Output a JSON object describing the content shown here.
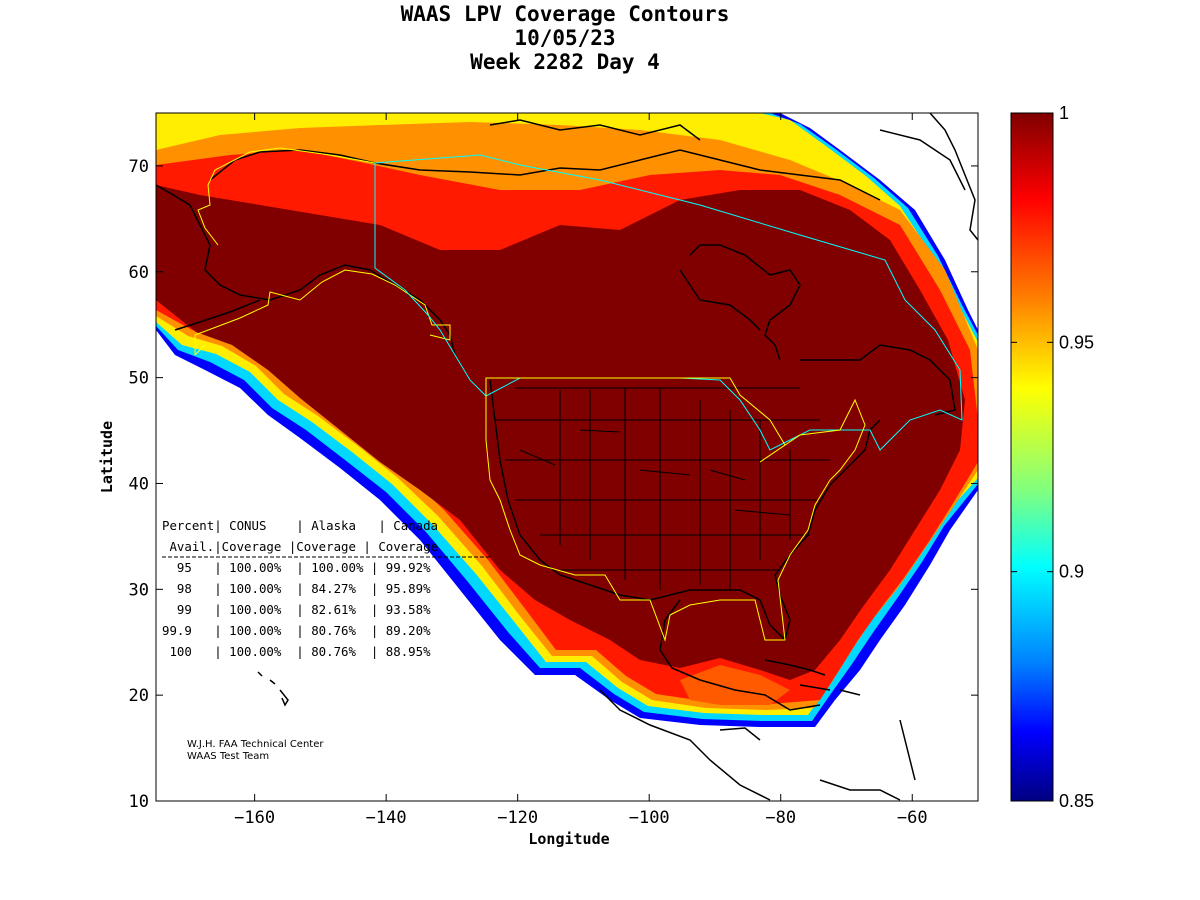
{
  "title_lines": [
    "WAAS LPV Coverage Contours",
    "10/05/23",
    "Week 2282 Day 4"
  ],
  "map": {
    "xlabel": "Longitude",
    "ylabel": "Latitude",
    "lon_range": [
      -175,
      -50
    ],
    "lat_range": [
      10,
      75
    ],
    "x_ticks": [
      -160,
      -140,
      -120,
      -100,
      -80,
      -60
    ],
    "y_ticks": [
      10,
      20,
      30,
      40,
      50,
      60,
      70
    ]
  },
  "colorbar": {
    "min": 0.85,
    "max": 1,
    "tick_labels": [
      "1",
      "0.95",
      "0.9",
      "0.85"
    ],
    "colors": [
      "#800000",
      "#ff0000",
      "#ff8000",
      "#ffff00",
      "#80ff80",
      "#00ffff",
      "#0080ff",
      "#0000ff",
      "#000080"
    ]
  },
  "table": {
    "header1": "Percent| CONUS    | Alaska   | Canada",
    "header2": " Avail.|Coverage |Coverage | Coverage",
    "rows": [
      "  95   | 100.00%  | 100.00% | 99.92%",
      "  98   | 100.00%  | 84.27%  | 95.89%",
      "  99   | 100.00%  | 82.61%  | 93.58%",
      "99.9   | 100.00%  | 80.76%  | 89.20%",
      " 100   | 100.00%  | 80.76%  | 88.95%"
    ]
  },
  "credits": [
    "W.J.H. FAA Technical Center",
    "WAAS Test Team"
  ],
  "colors": {
    "coverage_core": "#800000",
    "outline_land": "#000000",
    "service_volume_yellow": "#ffff00",
    "service_volume_cyan": "#00ffff"
  }
}
